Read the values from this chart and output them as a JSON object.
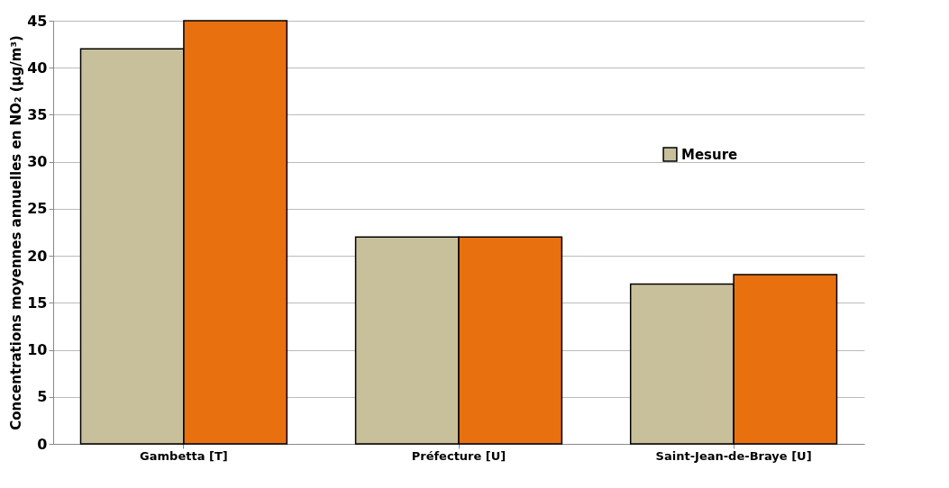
{
  "chart_data": {
    "type": "bar",
    "categories": [
      "Gambetta [T]",
      "Préfecture [U]",
      "Saint-Jean-de-Braye [U]"
    ],
    "series": [
      {
        "name": "Mesure",
        "color": "#c8c09a",
        "values": [
          42,
          22,
          17
        ]
      },
      {
        "color": "#e8700f",
        "values": [
          45,
          22,
          18
        ]
      }
    ],
    "ylabel": "Concentrations moyennes annuelles en NO₂ (µg/m³)",
    "ylim": [
      0,
      45
    ],
    "yticks": [
      0,
      5,
      10,
      15,
      20,
      25,
      30,
      35,
      40,
      45
    ],
    "grid": "y",
    "legend": "top right"
  }
}
